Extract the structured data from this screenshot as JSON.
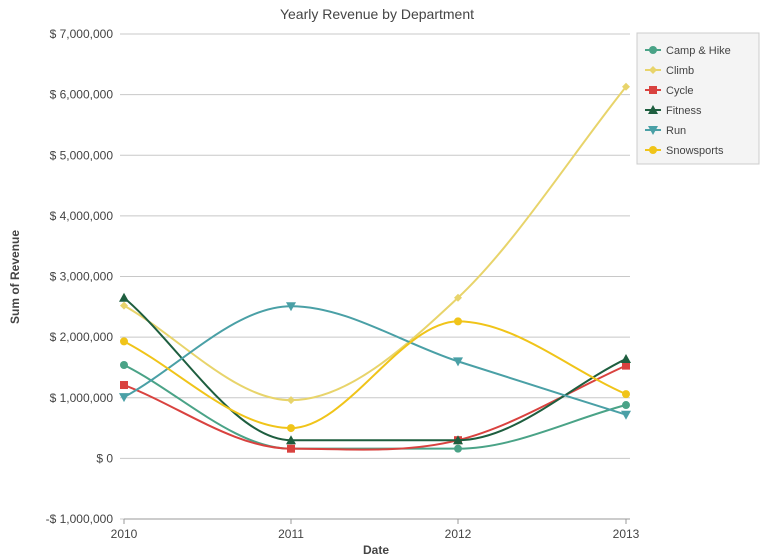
{
  "chart_data": {
    "type": "line",
    "title": "Yearly Revenue by Department",
    "xlabel": "Date",
    "ylabel": "Sum of Revenue",
    "categories": [
      "2010",
      "2011",
      "2012",
      "2013"
    ],
    "ylim": [
      -1000000,
      7000000
    ],
    "ytick_values": [
      -1000000,
      0,
      1000000,
      2000000,
      3000000,
      4000000,
      5000000,
      6000000,
      7000000
    ],
    "ytick_labels": [
      "-$ 1,000,000",
      "$ 0",
      "$ 1,000,000",
      "$ 2,000,000",
      "$ 3,000,000",
      "$ 4,000,000",
      "$ 5,000,000",
      "$ 6,000,000",
      "$ 7,000,000"
    ],
    "grid": true,
    "legend_position": "top-right",
    "series": [
      {
        "name": "Camp & Hike",
        "color": "#4aa387",
        "marker": "circle",
        "values": [
          1540000,
          160000,
          160000,
          880000
        ]
      },
      {
        "name": "Climb",
        "color": "#e8d46b",
        "marker": "diamond",
        "values": [
          2520000,
          960000,
          2650000,
          6130000
        ]
      },
      {
        "name": "Cycle",
        "color": "#d9423f",
        "marker": "square",
        "values": [
          1210000,
          160000,
          300000,
          1530000
        ]
      },
      {
        "name": "Fitness",
        "color": "#1e5e3f",
        "marker": "triangle",
        "values": [
          2650000,
          300000,
          300000,
          1640000
        ]
      },
      {
        "name": "Run",
        "color": "#4aa0a6",
        "marker": "triangle-down",
        "values": [
          1010000,
          2510000,
          1600000,
          720000
        ]
      },
      {
        "name": "Snowsports",
        "color": "#f0c419",
        "marker": "circle",
        "values": [
          1930000,
          500000,
          2260000,
          1060000
        ]
      }
    ]
  }
}
